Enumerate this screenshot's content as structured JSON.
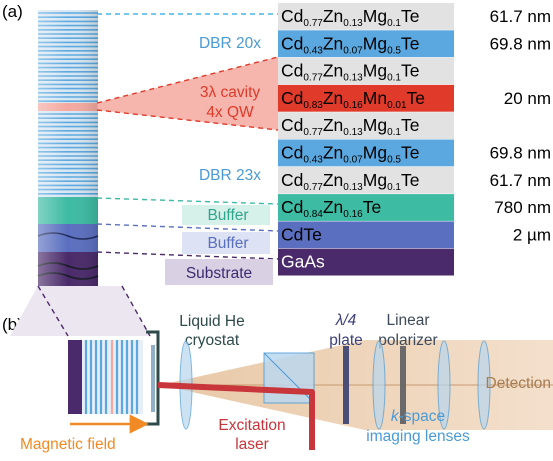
{
  "panel_a": {
    "panel_label": "(a)",
    "stack_labels": {
      "dbr_top": "DBR 20x",
      "cavity_line1": "3λ cavity",
      "cavity_line2": "4x QW",
      "dbr_bottom": "DBR 23x",
      "buffer_cdznte": "Buffer",
      "buffer_cdte": "Buffer",
      "substrate": "Substrate"
    },
    "layers": [
      {
        "base": "Cd",
        "parts": [
          [
            "0.77",
            "Zn"
          ],
          [
            "0.13",
            "Mg"
          ],
          [
            "0.1",
            "Te"
          ]
        ],
        "thickness": "61.7 nm",
        "color": "#e2e2e2"
      },
      {
        "base": "Cd",
        "parts": [
          [
            "0.43",
            "Zn"
          ],
          [
            "0.07",
            "Mg"
          ],
          [
            "0.5",
            "Te"
          ]
        ],
        "thickness": "69.8 nm",
        "color": "#5aa8df"
      },
      {
        "base": "Cd",
        "parts": [
          [
            "0.77",
            "Zn"
          ],
          [
            "0.13",
            "Mg"
          ],
          [
            "0.1",
            "Te"
          ]
        ],
        "thickness": "",
        "color": "#e2e2e2"
      },
      {
        "base": "Cd",
        "parts": [
          [
            "0.83",
            "Zn"
          ],
          [
            "0.16",
            "Mn"
          ],
          [
            "0.01",
            "Te"
          ]
        ],
        "thickness": "20 nm",
        "color": "#e03a2a"
      },
      {
        "base": "Cd",
        "parts": [
          [
            "0.77",
            "Zn"
          ],
          [
            "0.13",
            "Mg"
          ],
          [
            "0.1",
            "Te"
          ]
        ],
        "thickness": "",
        "color": "#e2e2e2"
      },
      {
        "base": "Cd",
        "parts": [
          [
            "0.43",
            "Zn"
          ],
          [
            "0.07",
            "Mg"
          ],
          [
            "0.5",
            "Te"
          ]
        ],
        "thickness": "69.8 nm",
        "color": "#5aa8df"
      },
      {
        "base": "Cd",
        "parts": [
          [
            "0.77",
            "Zn"
          ],
          [
            "0.13",
            "Mg"
          ],
          [
            "0.1",
            "Te"
          ]
        ],
        "thickness": "61.7 nm",
        "color": "#e2e2e2"
      },
      {
        "base": "Cd",
        "parts": [
          [
            "0.84",
            "Zn"
          ],
          [
            "0.16",
            "Te"
          ]
        ],
        "thickness": "780 nm",
        "color": "#3dbba3"
      },
      {
        "base": "CdTe",
        "parts": [],
        "thickness": "2 µm",
        "color": "#5a6fbf"
      },
      {
        "base": "GaAs",
        "parts": [],
        "thickness": "",
        "color": "#4a2a6a"
      }
    ]
  },
  "panel_b": {
    "panel_label": "(b)",
    "cryostat_line1": "Liquid He",
    "cryostat_line2": "cryostat",
    "waveplate_line1": "λ/4",
    "waveplate_line2": "plate",
    "polarizer_line1": "Linear",
    "polarizer_line2": "polarizer",
    "detection": "Detection",
    "kspace_line1_italic": "k",
    "kspace_line1_rest": "-space",
    "kspace_line2": "imaging lenses",
    "excitation_line1": "Excitation",
    "excitation_line2": "laser",
    "magnetic_field": "Magnetic field"
  },
  "colors": {
    "dbr_light": "#d7e6f3",
    "dbr_blue": "#5aa8df",
    "cavity": "#f4a9a0",
    "buffer_teal": "#3dbba3",
    "buffer_blue": "#5a6fbf",
    "substrate": "#4a2a6a",
    "detection_beam": "#e8c8a6",
    "laser": "#c8353b",
    "magnetic_arrow": "#f08a24",
    "label_blue": "#4a9ad6",
    "label_red": "#e03a2a",
    "label_teal": "#2fa58c",
    "label_purple": "#3c2a70"
  }
}
